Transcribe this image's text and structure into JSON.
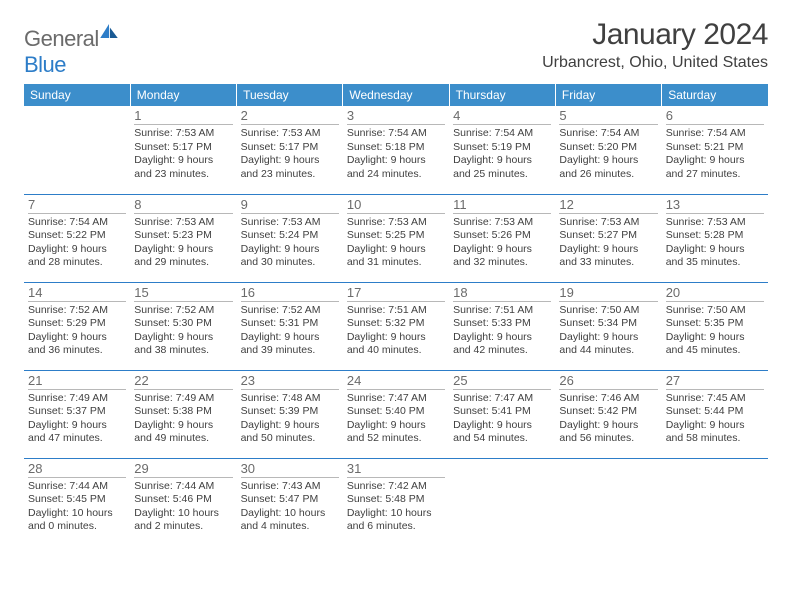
{
  "brand": {
    "word1": "General",
    "word2": "Blue"
  },
  "title": "January 2024",
  "location": "Urbancrest, Ohio, United States",
  "colors": {
    "header_bg": "#3c8ecb",
    "accent": "#2d7dc8",
    "text": "#404040"
  },
  "day_headers": [
    "Sunday",
    "Monday",
    "Tuesday",
    "Wednesday",
    "Thursday",
    "Friday",
    "Saturday"
  ],
  "weeks": [
    [
      {
        "blank": true
      },
      {
        "d": "1",
        "sr": "Sunrise: 7:53 AM",
        "ss": "Sunset: 5:17 PM",
        "dl1": "Daylight: 9 hours",
        "dl2": "and 23 minutes."
      },
      {
        "d": "2",
        "sr": "Sunrise: 7:53 AM",
        "ss": "Sunset: 5:17 PM",
        "dl1": "Daylight: 9 hours",
        "dl2": "and 23 minutes."
      },
      {
        "d": "3",
        "sr": "Sunrise: 7:54 AM",
        "ss": "Sunset: 5:18 PM",
        "dl1": "Daylight: 9 hours",
        "dl2": "and 24 minutes."
      },
      {
        "d": "4",
        "sr": "Sunrise: 7:54 AM",
        "ss": "Sunset: 5:19 PM",
        "dl1": "Daylight: 9 hours",
        "dl2": "and 25 minutes."
      },
      {
        "d": "5",
        "sr": "Sunrise: 7:54 AM",
        "ss": "Sunset: 5:20 PM",
        "dl1": "Daylight: 9 hours",
        "dl2": "and 26 minutes."
      },
      {
        "d": "6",
        "sr": "Sunrise: 7:54 AM",
        "ss": "Sunset: 5:21 PM",
        "dl1": "Daylight: 9 hours",
        "dl2": "and 27 minutes."
      }
    ],
    [
      {
        "d": "7",
        "sr": "Sunrise: 7:54 AM",
        "ss": "Sunset: 5:22 PM",
        "dl1": "Daylight: 9 hours",
        "dl2": "and 28 minutes."
      },
      {
        "d": "8",
        "sr": "Sunrise: 7:53 AM",
        "ss": "Sunset: 5:23 PM",
        "dl1": "Daylight: 9 hours",
        "dl2": "and 29 minutes."
      },
      {
        "d": "9",
        "sr": "Sunrise: 7:53 AM",
        "ss": "Sunset: 5:24 PM",
        "dl1": "Daylight: 9 hours",
        "dl2": "and 30 minutes."
      },
      {
        "d": "10",
        "sr": "Sunrise: 7:53 AM",
        "ss": "Sunset: 5:25 PM",
        "dl1": "Daylight: 9 hours",
        "dl2": "and 31 minutes."
      },
      {
        "d": "11",
        "sr": "Sunrise: 7:53 AM",
        "ss": "Sunset: 5:26 PM",
        "dl1": "Daylight: 9 hours",
        "dl2": "and 32 minutes."
      },
      {
        "d": "12",
        "sr": "Sunrise: 7:53 AM",
        "ss": "Sunset: 5:27 PM",
        "dl1": "Daylight: 9 hours",
        "dl2": "and 33 minutes."
      },
      {
        "d": "13",
        "sr": "Sunrise: 7:53 AM",
        "ss": "Sunset: 5:28 PM",
        "dl1": "Daylight: 9 hours",
        "dl2": "and 35 minutes."
      }
    ],
    [
      {
        "d": "14",
        "sr": "Sunrise: 7:52 AM",
        "ss": "Sunset: 5:29 PM",
        "dl1": "Daylight: 9 hours",
        "dl2": "and 36 minutes."
      },
      {
        "d": "15",
        "sr": "Sunrise: 7:52 AM",
        "ss": "Sunset: 5:30 PM",
        "dl1": "Daylight: 9 hours",
        "dl2": "and 38 minutes."
      },
      {
        "d": "16",
        "sr": "Sunrise: 7:52 AM",
        "ss": "Sunset: 5:31 PM",
        "dl1": "Daylight: 9 hours",
        "dl2": "and 39 minutes."
      },
      {
        "d": "17",
        "sr": "Sunrise: 7:51 AM",
        "ss": "Sunset: 5:32 PM",
        "dl1": "Daylight: 9 hours",
        "dl2": "and 40 minutes."
      },
      {
        "d": "18",
        "sr": "Sunrise: 7:51 AM",
        "ss": "Sunset: 5:33 PM",
        "dl1": "Daylight: 9 hours",
        "dl2": "and 42 minutes."
      },
      {
        "d": "19",
        "sr": "Sunrise: 7:50 AM",
        "ss": "Sunset: 5:34 PM",
        "dl1": "Daylight: 9 hours",
        "dl2": "and 44 minutes."
      },
      {
        "d": "20",
        "sr": "Sunrise: 7:50 AM",
        "ss": "Sunset: 5:35 PM",
        "dl1": "Daylight: 9 hours",
        "dl2": "and 45 minutes."
      }
    ],
    [
      {
        "d": "21",
        "sr": "Sunrise: 7:49 AM",
        "ss": "Sunset: 5:37 PM",
        "dl1": "Daylight: 9 hours",
        "dl2": "and 47 minutes."
      },
      {
        "d": "22",
        "sr": "Sunrise: 7:49 AM",
        "ss": "Sunset: 5:38 PM",
        "dl1": "Daylight: 9 hours",
        "dl2": "and 49 minutes."
      },
      {
        "d": "23",
        "sr": "Sunrise: 7:48 AM",
        "ss": "Sunset: 5:39 PM",
        "dl1": "Daylight: 9 hours",
        "dl2": "and 50 minutes."
      },
      {
        "d": "24",
        "sr": "Sunrise: 7:47 AM",
        "ss": "Sunset: 5:40 PM",
        "dl1": "Daylight: 9 hours",
        "dl2": "and 52 minutes."
      },
      {
        "d": "25",
        "sr": "Sunrise: 7:47 AM",
        "ss": "Sunset: 5:41 PM",
        "dl1": "Daylight: 9 hours",
        "dl2": "and 54 minutes."
      },
      {
        "d": "26",
        "sr": "Sunrise: 7:46 AM",
        "ss": "Sunset: 5:42 PM",
        "dl1": "Daylight: 9 hours",
        "dl2": "and 56 minutes."
      },
      {
        "d": "27",
        "sr": "Sunrise: 7:45 AM",
        "ss": "Sunset: 5:44 PM",
        "dl1": "Daylight: 9 hours",
        "dl2": "and 58 minutes."
      }
    ],
    [
      {
        "d": "28",
        "sr": "Sunrise: 7:44 AM",
        "ss": "Sunset: 5:45 PM",
        "dl1": "Daylight: 10 hours",
        "dl2": "and 0 minutes."
      },
      {
        "d": "29",
        "sr": "Sunrise: 7:44 AM",
        "ss": "Sunset: 5:46 PM",
        "dl1": "Daylight: 10 hours",
        "dl2": "and 2 minutes."
      },
      {
        "d": "30",
        "sr": "Sunrise: 7:43 AM",
        "ss": "Sunset: 5:47 PM",
        "dl1": "Daylight: 10 hours",
        "dl2": "and 4 minutes."
      },
      {
        "d": "31",
        "sr": "Sunrise: 7:42 AM",
        "ss": "Sunset: 5:48 PM",
        "dl1": "Daylight: 10 hours",
        "dl2": "and 6 minutes."
      },
      {
        "blank": true
      },
      {
        "blank": true
      },
      {
        "blank": true
      }
    ]
  ]
}
